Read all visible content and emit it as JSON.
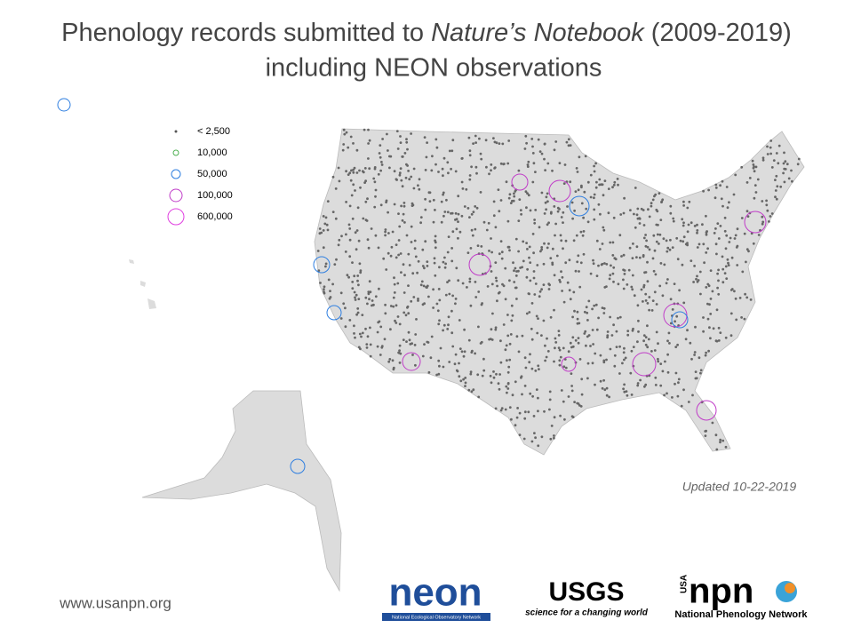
{
  "title": {
    "line1_prefix": "Phenology records submitted to ",
    "line1_italic": "Nature’s Notebook",
    "line1_suffix": " (2009-2019)",
    "line2": "including NEON observations"
  },
  "legend": {
    "items": [
      {
        "label": "< 2,500",
        "color": "#555555"
      },
      {
        "label": "10,000",
        "color": "#4caf50"
      },
      {
        "label": "50,000",
        "color": "#2f7fe0"
      },
      {
        "label": "100,000",
        "color": "#c03cc8"
      },
      {
        "label": "600,000",
        "color": "#e040e0"
      }
    ]
  },
  "updated": "Updated 10-22-2019",
  "footer": {
    "url": "www.usanpn.org",
    "neon": {
      "text": "neon",
      "subtext": "National Ecological Observatory Network"
    },
    "usgs": {
      "text": "USGS",
      "subtext": "science for a changing world"
    },
    "npn": {
      "prefix": "USA",
      "text": "npn",
      "subtext": "National Phenology Network"
    }
  }
}
